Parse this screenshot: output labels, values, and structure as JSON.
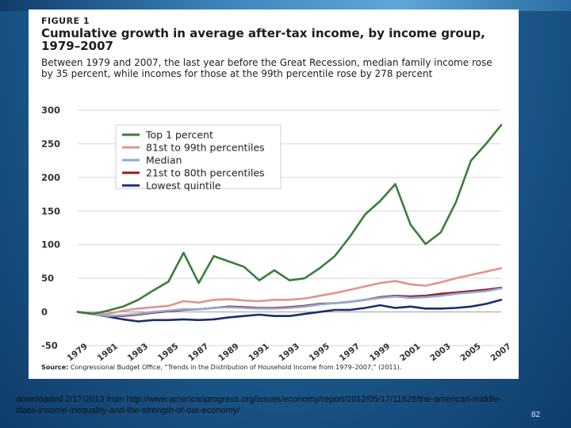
{
  "figure": {
    "label": "FIGURE 1",
    "title": "Cumulative growth in average after-tax income, by income group, 1979–2007",
    "subtitle": "Between 1979 and 2007, the last year before the Great Recession, median family income rose by 35 percent, while incomes for those at the 99th percentile rose by 278 percent",
    "source_label": "Source:",
    "source_text": "Congressional Budget Office, “Trends in the Distribution of Household Income from 1979–2007,” (2011)."
  },
  "footer": {
    "text": "downloaded 2/17/2013 from http://www.americanprogress.org/issues/economy/report/2012/05/17/11628/the-american-middle-class-income-inequality-and-the-strength-of-our-economy/",
    "slide_number": "82"
  },
  "colors": {
    "slide_background": "#1f5f94",
    "top1": "#3b7d3b",
    "p81_99": "#e0948e",
    "median": "#8faad4",
    "p21_80": "#9a1b1b",
    "lowest": "#1b2e6b",
    "grid": "#d6d6d6",
    "zero_line": "#9a9a9a"
  },
  "chart_data": {
    "type": "line",
    "title": "Cumulative growth in average after-tax income, by income group, 1979–2007",
    "xlabel": "",
    "ylabel": "",
    "ylim": [
      -50,
      300
    ],
    "yticks": [
      300,
      250,
      200,
      150,
      100,
      50,
      0,
      -50
    ],
    "xticks": [
      1979,
      1981,
      1983,
      1985,
      1987,
      1989,
      1991,
      1993,
      1995,
      1997,
      1999,
      2001,
      2003,
      2005,
      2007
    ],
    "grid": true,
    "legend_position": "top-left",
    "x": [
      1979,
      1980,
      1981,
      1982,
      1983,
      1984,
      1985,
      1986,
      1987,
      1988,
      1989,
      1990,
      1991,
      1992,
      1993,
      1994,
      1995,
      1996,
      1997,
      1998,
      1999,
      2000,
      2001,
      2002,
      2003,
      2004,
      2005,
      2006,
      2007
    ],
    "series": [
      {
        "name": "Top 1 percent",
        "color_key": "top1",
        "values": [
          0,
          -3,
          2,
          8,
          18,
          32,
          45,
          88,
          43,
          83,
          75,
          67,
          47,
          62,
          47,
          50,
          65,
          83,
          112,
          145,
          165,
          190,
          130,
          101,
          118,
          163,
          225,
          250,
          278
        ]
      },
      {
        "name": "81st to 99th percentiles",
        "color_key": "p81_99",
        "values": [
          0,
          -2,
          -3,
          2,
          5,
          7,
          9,
          16,
          14,
          18,
          19,
          17,
          16,
          18,
          18,
          20,
          24,
          28,
          33,
          38,
          43,
          46,
          41,
          39,
          44,
          50,
          55,
          60,
          65
        ]
      },
      {
        "name": "Median",
        "color_key": "median",
        "values": [
          0,
          -3,
          -6,
          -5,
          -3,
          0,
          2,
          4,
          4,
          6,
          7,
          6,
          5,
          5,
          6,
          8,
          11,
          13,
          15,
          18,
          21,
          23,
          21,
          22,
          24,
          27,
          29,
          31,
          35
        ]
      },
      {
        "name": "21st to 80th percentiles",
        "color_key": "p21_80",
        "values": [
          0,
          -3,
          -6,
          -6,
          -4,
          -1,
          1,
          3,
          4,
          6,
          8,
          7,
          6,
          6,
          7,
          9,
          12,
          13,
          15,
          18,
          22,
          24,
          23,
          24,
          27,
          29,
          31,
          33,
          36
        ]
      },
      {
        "name": "Lowest quintile",
        "color_key": "lowest",
        "values": [
          0,
          -3,
          -7,
          -11,
          -14,
          -12,
          -12,
          -11,
          -12,
          -11,
          -8,
          -6,
          -4,
          -6,
          -6,
          -3,
          0,
          3,
          3,
          6,
          10,
          6,
          8,
          5,
          5,
          6,
          8,
          12,
          18
        ]
      }
    ]
  }
}
